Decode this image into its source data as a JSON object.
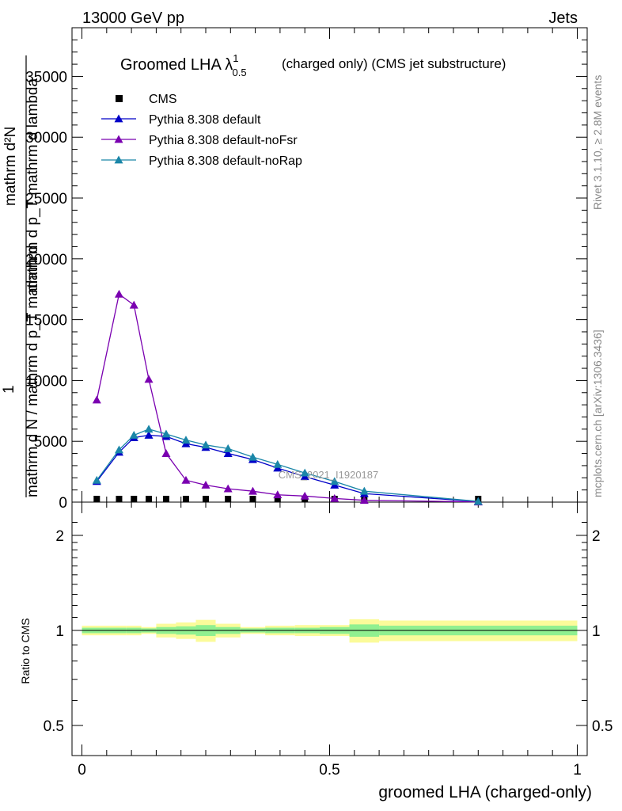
{
  "header": {
    "left": "13000 GeV pp",
    "right": "Jets"
  },
  "side_labels": {
    "rivet": "Rivet 3.1.10, ≥ 2.8M events",
    "mcplots": "mcplots.cern.ch [arXiv:1306.3436]"
  },
  "watermark": "CMS_2021_I1920187",
  "colors": {
    "cms": "#000000",
    "default": "#0000c8",
    "noFsr": "#7a00b0",
    "noRap": "#1a86a8",
    "band_inner": "#90f090",
    "band_outer": "#fbfb9a"
  },
  "chart_data": [
    {
      "type": "line",
      "title": "Groomed LHA λ",
      "title_sup": "1",
      "title_sub": "0.5",
      "title_rest": "(charged only) (CMS jet substructure)",
      "ylabel_top": "mathrm d²N",
      "ylabel_top2": "mathrm d p_T mathrm d lambda",
      "ylabel_one": "1",
      "ylabel_bottom": "mathrm d N / mathrm d p_T mathrm d",
      "ylim": [
        0,
        39000
      ],
      "yticks": [
        0,
        5000,
        10000,
        15000,
        20000,
        25000,
        30000,
        35000
      ],
      "ytick_labels": [
        "0",
        "5000",
        "10000",
        "15000",
        "20000",
        "25000",
        "30000",
        "35000"
      ],
      "xlim": [
        -0.02,
        1.02
      ],
      "legend_position": "top-left",
      "series": [
        {
          "name": "CMS",
          "marker": "square",
          "color_key": "cms",
          "x": [
            0.03,
            0.075,
            0.105,
            0.135,
            0.17,
            0.21,
            0.25,
            0.295,
            0.345,
            0.395,
            0.45,
            0.51,
            0.57,
            0.8
          ],
          "values": [
            100,
            100,
            100,
            100,
            100,
            100,
            100,
            100,
            100,
            100,
            100,
            100,
            100,
            100
          ]
        },
        {
          "name": "Pythia 8.308 default",
          "marker": "triangle",
          "color_key": "default",
          "x": [
            0.03,
            0.075,
            0.105,
            0.135,
            0.17,
            0.21,
            0.25,
            0.295,
            0.345,
            0.395,
            0.45,
            0.51,
            0.57,
            0.8
          ],
          "values": [
            1700,
            4100,
            5300,
            5500,
            5400,
            4800,
            4500,
            4000,
            3500,
            2800,
            2100,
            1400,
            700,
            50
          ]
        },
        {
          "name": "Pythia 8.308 default-noFsr",
          "marker": "triangle",
          "color_key": "noFsr",
          "x": [
            0.03,
            0.075,
            0.105,
            0.135,
            0.17,
            0.21,
            0.25,
            0.295,
            0.345,
            0.395,
            0.45,
            0.51,
            0.57,
            0.8
          ],
          "values": [
            8400,
            17100,
            16200,
            10100,
            4000,
            1800,
            1400,
            1100,
            900,
            600,
            500,
            300,
            150,
            20
          ]
        },
        {
          "name": "Pythia 8.308 default-noRap",
          "marker": "triangle",
          "color_key": "noRap",
          "x": [
            0.03,
            0.075,
            0.105,
            0.135,
            0.17,
            0.21,
            0.25,
            0.295,
            0.345,
            0.395,
            0.45,
            0.51,
            0.57,
            0.8
          ],
          "values": [
            1800,
            4300,
            5500,
            6000,
            5600,
            5100,
            4700,
            4400,
            3700,
            3100,
            2400,
            1700,
            900,
            60
          ]
        }
      ]
    },
    {
      "type": "area",
      "ylabel": "Ratio to CMS",
      "xlabel": "groomed LHA (charged-only)",
      "ylim": [
        0.4,
        2.4
      ],
      "yticks": [
        0.5,
        1,
        2
      ],
      "ytick_labels": [
        "0.5",
        "1",
        "2"
      ],
      "xticks": [
        0,
        0.5,
        1
      ],
      "xtick_labels": [
        "0",
        "0.5",
        "1"
      ],
      "xlim": [
        -0.02,
        1.02
      ],
      "bin_edges": [
        0,
        0.09,
        0.12,
        0.15,
        0.19,
        0.23,
        0.27,
        0.32,
        0.37,
        0.43,
        0.48,
        0.54,
        0.6,
        1.0
      ],
      "inner_half_width": [
        0.02,
        0.02,
        0.015,
        0.025,
        0.03,
        0.04,
        0.025,
        0.015,
        0.02,
        0.02,
        0.025,
        0.045,
        0.035
      ],
      "outer_half_width": [
        0.035,
        0.035,
        0.025,
        0.05,
        0.06,
        0.08,
        0.05,
        0.025,
        0.035,
        0.04,
        0.04,
        0.085,
        0.075
      ]
    }
  ]
}
